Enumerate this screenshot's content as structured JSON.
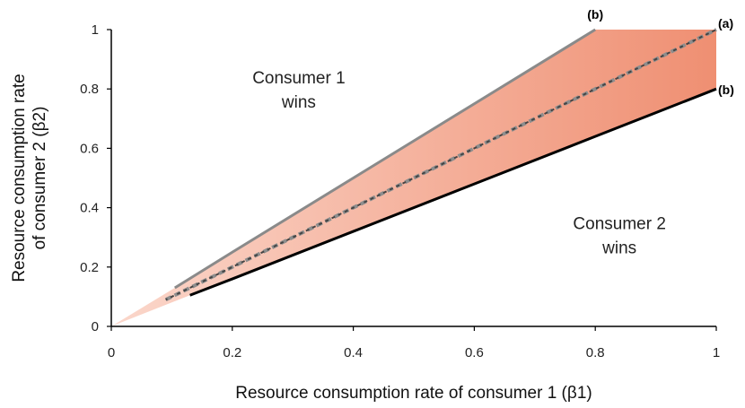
{
  "chart_data": {
    "type": "line",
    "xlabel": "Resource consumption rate of consumer 1 (β1)",
    "ylabel_line1": "Resource consumption rate",
    "ylabel_line2": "of consumer 2 (β2)",
    "xlim": [
      0,
      1
    ],
    "ylim": [
      0,
      1
    ],
    "xticks": [
      {
        "v": 0,
        "label": "0"
      },
      {
        "v": 0.2,
        "label": "0.2"
      },
      {
        "v": 0.4,
        "label": "0.4"
      },
      {
        "v": 0.6,
        "label": "0.6"
      },
      {
        "v": 0.8,
        "label": "0.8"
      },
      {
        "v": 1,
        "label": "1"
      }
    ],
    "yticks": [
      {
        "v": 0,
        "label": "0"
      },
      {
        "v": 0.2,
        "label": "0.2"
      },
      {
        "v": 0.4,
        "label": "0.4"
      },
      {
        "v": 0.6,
        "label": "0.6"
      },
      {
        "v": 0.8,
        "label": "0.8"
      },
      {
        "v": 1,
        "label": "1"
      }
    ],
    "grid": false,
    "series": [
      {
        "name": "(b)",
        "style": "solid",
        "color": "#8a8a8a",
        "x": [
          0.105,
          0.2,
          0.4,
          0.6,
          0.8
        ],
        "y": [
          0.13,
          0.25,
          0.5,
          0.75,
          1.0
        ]
      },
      {
        "name": "(a)",
        "style": "dashed",
        "color": "#444444",
        "x": [
          0.09,
          0.2,
          0.4,
          0.6,
          0.8,
          1.0
        ],
        "y": [
          0.09,
          0.2,
          0.4,
          0.6,
          0.8,
          1.0
        ]
      },
      {
        "name": "(b)",
        "style": "solid",
        "color": "#000000",
        "x": [
          0.13,
          0.2,
          0.4,
          0.6,
          0.8,
          1.0
        ],
        "y": [
          0.105,
          0.16,
          0.32,
          0.48,
          0.64,
          0.8
        ]
      }
    ],
    "shaded_region": {
      "color": "#f39f86",
      "between": [
        "upper (b)",
        "lower (b)"
      ]
    },
    "annotations": [
      {
        "text_line1": "Consumer 1",
        "text_line2": "wins",
        "x": 0.31,
        "y": 0.8
      },
      {
        "text_line1": "Consumer 2",
        "text_line2": "wins",
        "x": 0.84,
        "y": 0.31
      }
    ]
  }
}
